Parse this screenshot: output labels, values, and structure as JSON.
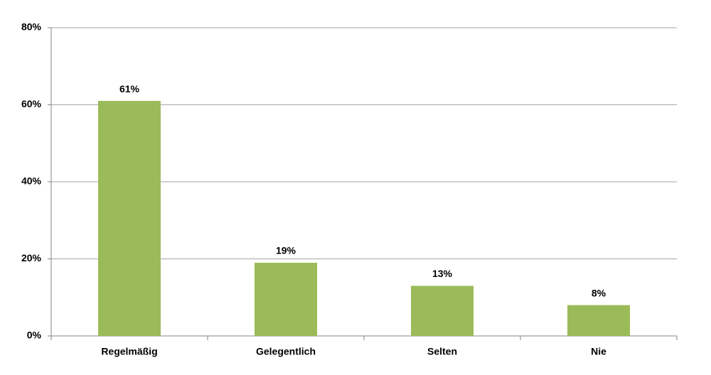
{
  "chart_data": {
    "type": "bar",
    "categories": [
      "Regelmäßig",
      "Gelegentlich",
      "Selten",
      "Nie"
    ],
    "values": [
      61,
      19,
      13,
      8
    ],
    "value_labels": [
      "61%",
      "19%",
      "13%",
      "8%"
    ],
    "color": "#9bbb59",
    "ylim": [
      0,
      80
    ],
    "yticks": [
      {
        "value": 0,
        "label": "0%"
      },
      {
        "value": 20,
        "label": "20%"
      },
      {
        "value": 40,
        "label": "40%"
      },
      {
        "value": 60,
        "label": "60%"
      },
      {
        "value": 80,
        "label": "80%"
      }
    ],
    "grid": true
  }
}
